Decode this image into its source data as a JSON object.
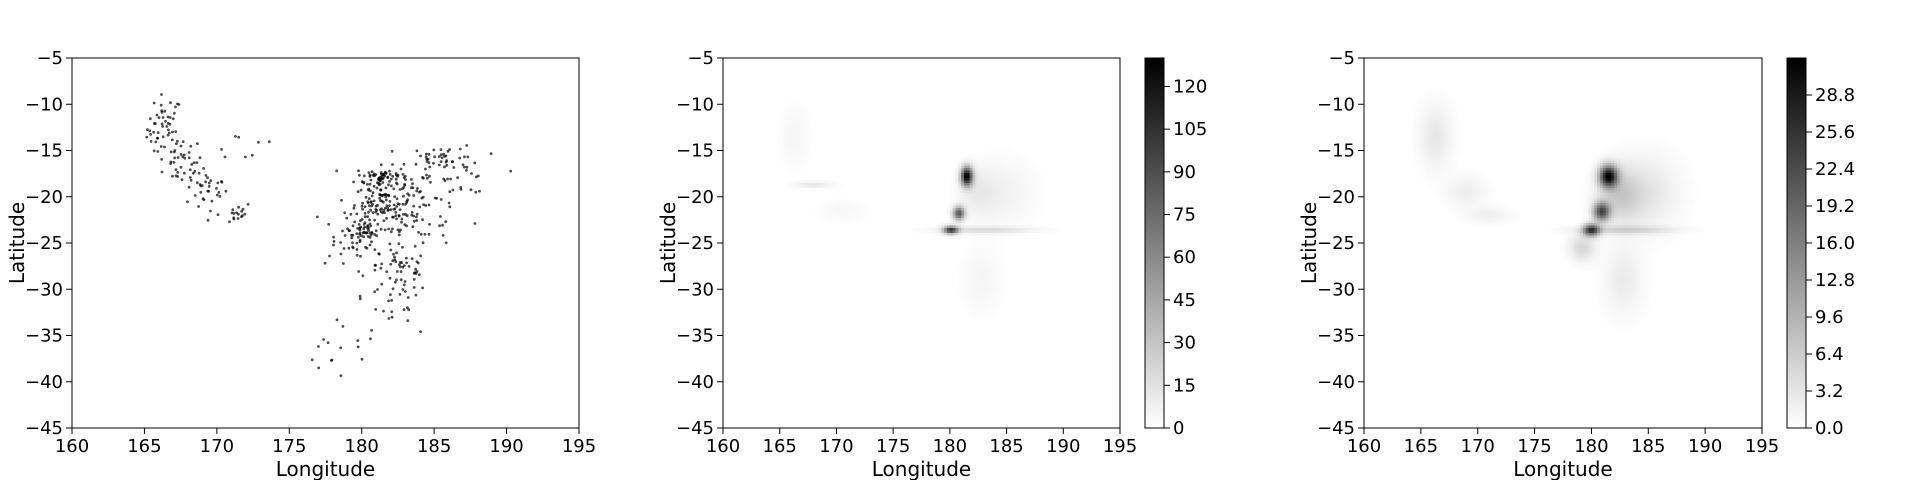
{
  "chart_data": [
    {
      "type": "scatter",
      "xlabel": "Longitude",
      "ylabel": "Latitude",
      "xlim": [
        160,
        195
      ],
      "ylim": [
        -45,
        -5
      ],
      "xticks": [
        "160",
        "165",
        "170",
        "175",
        "180",
        "185",
        "190",
        "195"
      ],
      "yticks": [
        "−45",
        "−40",
        "−35",
        "−30",
        "−25",
        "−20",
        "−15",
        "−10",
        "−5"
      ],
      "grid": false,
      "point_color": "#000000",
      "clusters": [
        {
          "cx": 166.4,
          "cy": -12.6,
          "sx": 0.6,
          "sy": 1.8,
          "n": 50
        },
        {
          "cx": 167.6,
          "cy": -16.2,
          "sx": 0.7,
          "sy": 1.3,
          "n": 35
        },
        {
          "cx": 169.3,
          "cy": -19.2,
          "sx": 0.7,
          "sy": 0.9,
          "n": 30
        },
        {
          "cx": 170.8,
          "cy": -21.7,
          "sx": 0.9,
          "sy": 0.6,
          "n": 20
        },
        {
          "cx": 171.8,
          "cy": -14.6,
          "sx": 1.4,
          "sy": 1.0,
          "n": 8
        },
        {
          "cx": 181.4,
          "cy": -17.9,
          "sx": 0.9,
          "sy": 0.6,
          "n": 70
        },
        {
          "cx": 181.5,
          "cy": -20.6,
          "sx": 1.0,
          "sy": 0.9,
          "n": 85
        },
        {
          "cx": 180.1,
          "cy": -23.9,
          "sx": 0.5,
          "sy": 0.9,
          "n": 50
        },
        {
          "cx": 182.8,
          "cy": -27.3,
          "sx": 0.9,
          "sy": 1.5,
          "n": 40
        },
        {
          "cx": 182.0,
          "cy": -31.5,
          "sx": 1.4,
          "sy": 2.0,
          "n": 35
        },
        {
          "cx": 178.2,
          "cy": -37.2,
          "sx": 1.6,
          "sy": 1.3,
          "n": 14
        },
        {
          "cx": 185.8,
          "cy": -15.8,
          "sx": 1.3,
          "sy": 0.7,
          "n": 40
        },
        {
          "cx": 184.0,
          "cy": -20.2,
          "sx": 1.6,
          "sy": 1.6,
          "n": 55
        },
        {
          "cx": 186.5,
          "cy": -18.5,
          "sx": 1.2,
          "sy": 1.6,
          "n": 20
        },
        {
          "cx": 179.0,
          "cy": -24.5,
          "sx": 1.3,
          "sy": 1.6,
          "n": 35
        },
        {
          "cx": 183.0,
          "cy": -23.5,
          "sx": 1.5,
          "sy": 1.6,
          "n": 30
        }
      ]
    },
    {
      "type": "heatmap",
      "xlabel": "Longitude",
      "ylabel": "Latitude",
      "xlim": [
        160,
        195
      ],
      "ylim": [
        -45,
        -5
      ],
      "xticks": [
        "160",
        "165",
        "170",
        "175",
        "180",
        "185",
        "190",
        "195"
      ],
      "yticks": [
        "−45",
        "−40",
        "−35",
        "−30",
        "−25",
        "−20",
        "−15",
        "−10",
        "−5"
      ],
      "colorbar": {
        "min": 0,
        "max": 130,
        "ticks": [
          "0",
          "15",
          "30",
          "45",
          "60",
          "75",
          "90",
          "105",
          "120"
        ],
        "tick_values": [
          0,
          15,
          30,
          45,
          60,
          75,
          90,
          105,
          120
        ]
      },
      "colormap": "Greys",
      "blobs": [
        {
          "cx": 181.5,
          "cy": -17.8,
          "sx": 0.35,
          "sy": 0.7,
          "v": 130
        },
        {
          "cx": 180.8,
          "cy": -21.8,
          "sx": 0.35,
          "sy": 0.5,
          "v": 85
        },
        {
          "cx": 180.1,
          "cy": -23.6,
          "sx": 0.45,
          "sy": 0.3,
          "v": 95
        },
        {
          "cx": 183.0,
          "cy": -23.6,
          "sx": 2.8,
          "sy": 0.25,
          "v": 18
        },
        {
          "cx": 182.5,
          "cy": -19.5,
          "sx": 1.2,
          "sy": 1.8,
          "v": 10
        },
        {
          "cx": 185.0,
          "cy": -19.5,
          "sx": 1.8,
          "sy": 2.5,
          "v": 6
        },
        {
          "cx": 182.8,
          "cy": -29.0,
          "sx": 1.2,
          "sy": 2.5,
          "v": 5
        },
        {
          "cx": 168.0,
          "cy": -18.7,
          "sx": 1.2,
          "sy": 0.25,
          "v": 12
        },
        {
          "cx": 166.3,
          "cy": -13.5,
          "sx": 0.9,
          "sy": 2.2,
          "v": 5
        },
        {
          "cx": 170.5,
          "cy": -21.5,
          "sx": 1.5,
          "sy": 0.8,
          "v": 4
        }
      ]
    },
    {
      "type": "heatmap",
      "xlabel": "Longitude",
      "ylabel": "Latitude",
      "xlim": [
        160,
        195
      ],
      "ylim": [
        -45,
        -5
      ],
      "xticks": [
        "160",
        "165",
        "170",
        "175",
        "180",
        "185",
        "190",
        "195"
      ],
      "yticks": [
        "−45",
        "−40",
        "−35",
        "−30",
        "−25",
        "−20",
        "−15",
        "−10",
        "−5"
      ],
      "colorbar": {
        "min": 0,
        "max": 32,
        "ticks": [
          "0.0",
          "3.2",
          "6.4",
          "9.6",
          "12.8",
          "16.0",
          "19.2",
          "22.4",
          "25.6",
          "28.8"
        ],
        "tick_values": [
          0,
          3.2,
          6.4,
          9.6,
          12.8,
          16.0,
          19.2,
          22.4,
          25.6,
          28.8
        ]
      },
      "colormap": "Greys",
      "blobs": [
        {
          "cx": 181.5,
          "cy": -17.8,
          "sx": 0.55,
          "sy": 0.8,
          "v": 30
        },
        {
          "cx": 180.9,
          "cy": -21.6,
          "sx": 0.5,
          "sy": 0.7,
          "v": 22
        },
        {
          "cx": 180.0,
          "cy": -23.6,
          "sx": 0.5,
          "sy": 0.45,
          "v": 24
        },
        {
          "cx": 183.0,
          "cy": -23.6,
          "sx": 2.8,
          "sy": 0.3,
          "v": 5
        },
        {
          "cx": 182.5,
          "cy": -19.8,
          "sx": 1.3,
          "sy": 2.0,
          "v": 6
        },
        {
          "cx": 185.0,
          "cy": -19.5,
          "sx": 1.9,
          "sy": 2.8,
          "v": 3
        },
        {
          "cx": 182.8,
          "cy": -29.0,
          "sx": 1.2,
          "sy": 2.6,
          "v": 2.5
        },
        {
          "cx": 179.2,
          "cy": -25.5,
          "sx": 0.8,
          "sy": 1.0,
          "v": 5
        },
        {
          "cx": 166.3,
          "cy": -13.5,
          "sx": 1.0,
          "sy": 2.4,
          "v": 3
        },
        {
          "cx": 169.0,
          "cy": -19.5,
          "sx": 1.2,
          "sy": 1.2,
          "v": 2.2
        },
        {
          "cx": 171.0,
          "cy": -22.0,
          "sx": 1.3,
          "sy": 0.6,
          "v": 2
        }
      ]
    }
  ]
}
